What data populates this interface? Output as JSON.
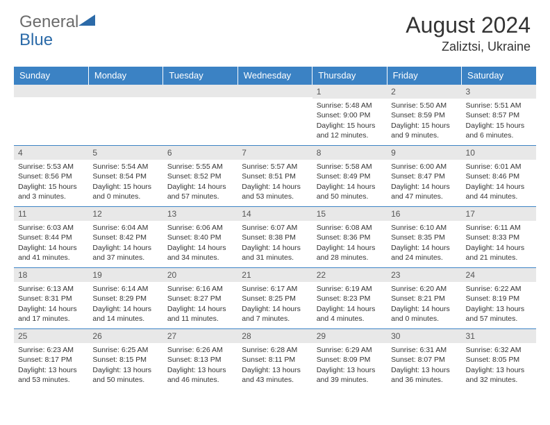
{
  "brand": {
    "part1": "General",
    "part2": "Blue"
  },
  "title": {
    "month": "August 2024",
    "location": "Zaliztsi, Ukraine"
  },
  "colors": {
    "header_bg": "#3b82c4",
    "header_fg": "#ffffff",
    "daynum_bg": "#e8e8e8",
    "border": "#3b82c4",
    "text": "#333333",
    "logo_gray": "#6b6b6b",
    "logo_blue": "#2b6aa8"
  },
  "day_headers": [
    "Sunday",
    "Monday",
    "Tuesday",
    "Wednesday",
    "Thursday",
    "Friday",
    "Saturday"
  ],
  "weeks": [
    [
      {
        "n": "",
        "sr": "",
        "ss": "",
        "dl": ""
      },
      {
        "n": "",
        "sr": "",
        "ss": "",
        "dl": ""
      },
      {
        "n": "",
        "sr": "",
        "ss": "",
        "dl": ""
      },
      {
        "n": "",
        "sr": "",
        "ss": "",
        "dl": ""
      },
      {
        "n": "1",
        "sr": "5:48 AM",
        "ss": "9:00 PM",
        "dl": "15 hours and 12 minutes."
      },
      {
        "n": "2",
        "sr": "5:50 AM",
        "ss": "8:59 PM",
        "dl": "15 hours and 9 minutes."
      },
      {
        "n": "3",
        "sr": "5:51 AM",
        "ss": "8:57 PM",
        "dl": "15 hours and 6 minutes."
      }
    ],
    [
      {
        "n": "4",
        "sr": "5:53 AM",
        "ss": "8:56 PM",
        "dl": "15 hours and 3 minutes."
      },
      {
        "n": "5",
        "sr": "5:54 AM",
        "ss": "8:54 PM",
        "dl": "15 hours and 0 minutes."
      },
      {
        "n": "6",
        "sr": "5:55 AM",
        "ss": "8:52 PM",
        "dl": "14 hours and 57 minutes."
      },
      {
        "n": "7",
        "sr": "5:57 AM",
        "ss": "8:51 PM",
        "dl": "14 hours and 53 minutes."
      },
      {
        "n": "8",
        "sr": "5:58 AM",
        "ss": "8:49 PM",
        "dl": "14 hours and 50 minutes."
      },
      {
        "n": "9",
        "sr": "6:00 AM",
        "ss": "8:47 PM",
        "dl": "14 hours and 47 minutes."
      },
      {
        "n": "10",
        "sr": "6:01 AM",
        "ss": "8:46 PM",
        "dl": "14 hours and 44 minutes."
      }
    ],
    [
      {
        "n": "11",
        "sr": "6:03 AM",
        "ss": "8:44 PM",
        "dl": "14 hours and 41 minutes."
      },
      {
        "n": "12",
        "sr": "6:04 AM",
        "ss": "8:42 PM",
        "dl": "14 hours and 37 minutes."
      },
      {
        "n": "13",
        "sr": "6:06 AM",
        "ss": "8:40 PM",
        "dl": "14 hours and 34 minutes."
      },
      {
        "n": "14",
        "sr": "6:07 AM",
        "ss": "8:38 PM",
        "dl": "14 hours and 31 minutes."
      },
      {
        "n": "15",
        "sr": "6:08 AM",
        "ss": "8:36 PM",
        "dl": "14 hours and 28 minutes."
      },
      {
        "n": "16",
        "sr": "6:10 AM",
        "ss": "8:35 PM",
        "dl": "14 hours and 24 minutes."
      },
      {
        "n": "17",
        "sr": "6:11 AM",
        "ss": "8:33 PM",
        "dl": "14 hours and 21 minutes."
      }
    ],
    [
      {
        "n": "18",
        "sr": "6:13 AM",
        "ss": "8:31 PM",
        "dl": "14 hours and 17 minutes."
      },
      {
        "n": "19",
        "sr": "6:14 AM",
        "ss": "8:29 PM",
        "dl": "14 hours and 14 minutes."
      },
      {
        "n": "20",
        "sr": "6:16 AM",
        "ss": "8:27 PM",
        "dl": "14 hours and 11 minutes."
      },
      {
        "n": "21",
        "sr": "6:17 AM",
        "ss": "8:25 PM",
        "dl": "14 hours and 7 minutes."
      },
      {
        "n": "22",
        "sr": "6:19 AM",
        "ss": "8:23 PM",
        "dl": "14 hours and 4 minutes."
      },
      {
        "n": "23",
        "sr": "6:20 AM",
        "ss": "8:21 PM",
        "dl": "14 hours and 0 minutes."
      },
      {
        "n": "24",
        "sr": "6:22 AM",
        "ss": "8:19 PM",
        "dl": "13 hours and 57 minutes."
      }
    ],
    [
      {
        "n": "25",
        "sr": "6:23 AM",
        "ss": "8:17 PM",
        "dl": "13 hours and 53 minutes."
      },
      {
        "n": "26",
        "sr": "6:25 AM",
        "ss": "8:15 PM",
        "dl": "13 hours and 50 minutes."
      },
      {
        "n": "27",
        "sr": "6:26 AM",
        "ss": "8:13 PM",
        "dl": "13 hours and 46 minutes."
      },
      {
        "n": "28",
        "sr": "6:28 AM",
        "ss": "8:11 PM",
        "dl": "13 hours and 43 minutes."
      },
      {
        "n": "29",
        "sr": "6:29 AM",
        "ss": "8:09 PM",
        "dl": "13 hours and 39 minutes."
      },
      {
        "n": "30",
        "sr": "6:31 AM",
        "ss": "8:07 PM",
        "dl": "13 hours and 36 minutes."
      },
      {
        "n": "31",
        "sr": "6:32 AM",
        "ss": "8:05 PM",
        "dl": "13 hours and 32 minutes."
      }
    ]
  ],
  "labels": {
    "sunrise": "Sunrise: ",
    "sunset": "Sunset: ",
    "daylight": "Daylight: "
  }
}
